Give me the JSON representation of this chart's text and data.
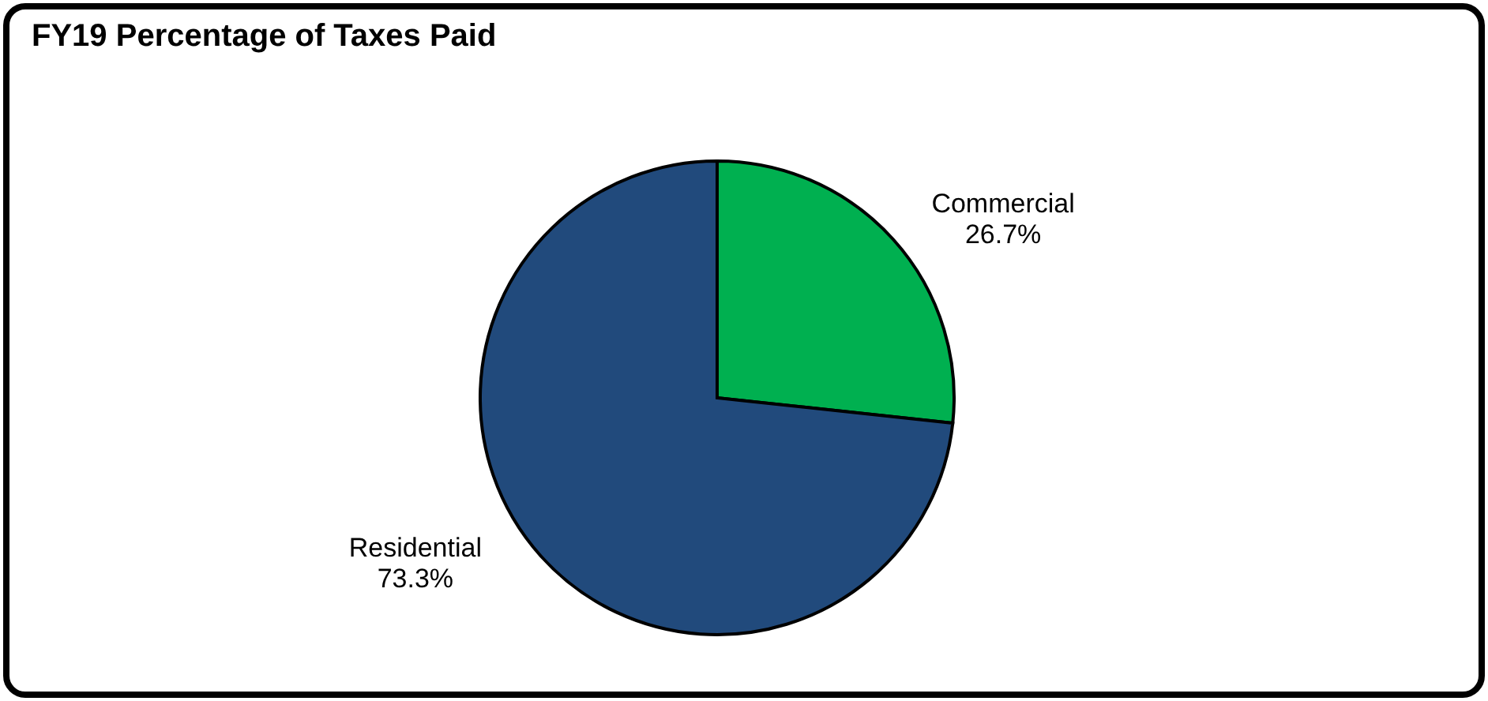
{
  "chart_data": {
    "type": "pie",
    "title": "FY19  Percentage of Taxes Paid",
    "categories": [
      "Commercial",
      "Residential"
    ],
    "values": [
      26.7,
      73.3
    ],
    "colors": [
      "#00b050",
      "#214a7c"
    ],
    "value_labels": [
      "26.7%",
      "73.3%"
    ],
    "legend": false
  }
}
